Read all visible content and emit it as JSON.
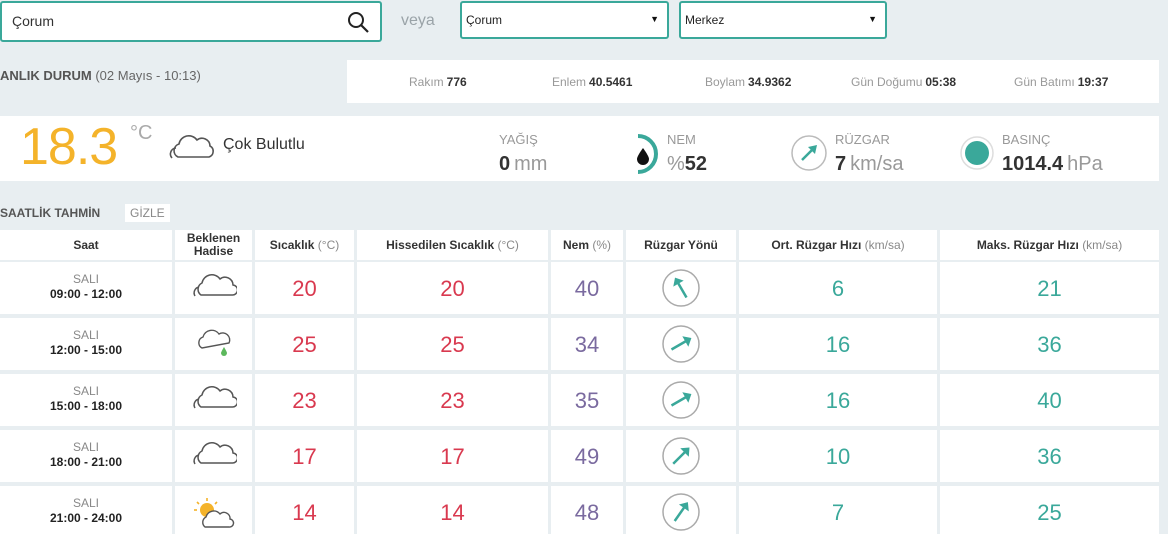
{
  "search": {
    "value": "Çorum"
  },
  "veya": "veya",
  "il_select": "Çorum",
  "ilce_select": "Merkez",
  "anlik": {
    "title": "ANLIK DURUM",
    "date": "(02 Mayıs - 10:13)",
    "rakim_label": "Rakım",
    "rakim": "776",
    "enlem_label": "Enlem",
    "enlem": "40.5461",
    "boylam_label": "Boylam",
    "boylam": "34.9362",
    "gundogumu_label": "Gün Doğumu",
    "gundogumu": "05:38",
    "gunbatimi_label": "Gün Batımı",
    "gunbatimi": "19:37"
  },
  "current": {
    "temp": "18.3",
    "unit": "°C",
    "desc": "Çok Bulutlu",
    "yagis_label": "YAĞIŞ",
    "yagis": "0",
    "yagis_unit": "mm",
    "nem_label": "NEM",
    "nem_prefix": "%",
    "nem": "52",
    "ruzgar_label": "RÜZGAR",
    "ruzgar": "7",
    "ruzgar_unit": "km/sa",
    "basinc_label": "BASINÇ",
    "basinc": "1014.4",
    "basinc_unit": "hPa"
  },
  "saatlik": {
    "title": "SAATLİK TAHMİN",
    "gizle": "GİZLE",
    "headers": {
      "saat": "Saat",
      "hadise1": "Beklenen",
      "hadise2": "Hadise",
      "sicaklik": "Sıcaklık",
      "sicaklik_u": "(°C)",
      "hissedilen": "Hissedilen Sıcaklık",
      "hissedilen_u": "(°C)",
      "nem": "Nem",
      "nem_u": "(%)",
      "yon": "Rüzgar Yönü",
      "ort": "Ort. Rüzgar Hızı",
      "ort_u": "(km/sa)",
      "maks": "Maks. Rüzgar Hızı",
      "maks_u": "(km/sa)"
    },
    "rows": [
      {
        "day": "SALI",
        "hours": "09:00 - 12:00",
        "icon": "cloudy-icon",
        "temp": "20",
        "feel": "20",
        "nem": "40",
        "dir": 150,
        "ort": "6",
        "maks": "21"
      },
      {
        "day": "SALI",
        "hours": "12:00 - 15:00",
        "icon": "light-rain-icon",
        "temp": "25",
        "feel": "25",
        "nem": "34",
        "dir": 240,
        "ort": "16",
        "maks": "36"
      },
      {
        "day": "SALI",
        "hours": "15:00 - 18:00",
        "icon": "cloudy-icon",
        "temp": "23",
        "feel": "23",
        "nem": "35",
        "dir": 240,
        "ort": "16",
        "maks": "40"
      },
      {
        "day": "SALI",
        "hours": "18:00 - 21:00",
        "icon": "cloudy-icon",
        "temp": "17",
        "feel": "17",
        "nem": "49",
        "dir": 225,
        "ort": "10",
        "maks": "36"
      },
      {
        "day": "SALI",
        "hours": "21:00 - 24:00",
        "icon": "partly-cloudy-icon",
        "temp": "14",
        "feel": "14",
        "nem": "48",
        "dir": 215,
        "ort": "7",
        "maks": "25"
      }
    ]
  },
  "colors": {
    "accent": "#3aa89a",
    "temp": "#f4b32a",
    "red": "#d9394f",
    "purple": "#7a6a9f"
  }
}
